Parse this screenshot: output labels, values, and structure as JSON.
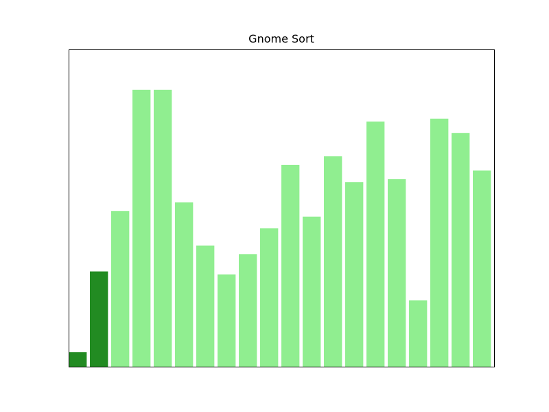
{
  "chart_data": {
    "type": "bar",
    "title": "Gnome Sort",
    "xlabel": "",
    "ylabel": "",
    "grid": false,
    "show_ticks": false,
    "ylim": [
      0,
      110
    ],
    "values": [
      5,
      33,
      54,
      96,
      96,
      57,
      42,
      32,
      39,
      48,
      70,
      52,
      73,
      64,
      85,
      65,
      23,
      86,
      81,
      68
    ],
    "highlighted_count": 2,
    "colors": {
      "highlight": "#228b22",
      "default": "#90ee90",
      "axes": "#000000"
    }
  }
}
